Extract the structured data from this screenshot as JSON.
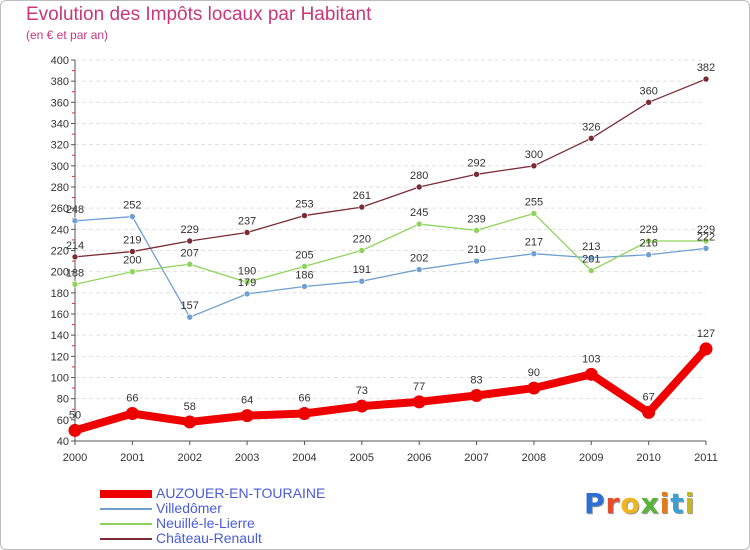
{
  "title": "Evolution des Impôts locaux par Habitant",
  "subtitle": "(en € et par an)",
  "logo": {
    "text": "Proxiti",
    "colors": [
      "#2a6fd1",
      "#e64b2a",
      "#f0b71d",
      "#58b43a",
      "#e07c1f",
      "#3aa0d8",
      "#c7b61c"
    ]
  },
  "chart_data": {
    "type": "line",
    "x": [
      2000,
      2001,
      2002,
      2003,
      2004,
      2005,
      2006,
      2007,
      2008,
      2009,
      2010,
      2011
    ],
    "xlim": [
      2000,
      2011
    ],
    "ylim": [
      40,
      400
    ],
    "yticks": [
      40,
      60,
      80,
      100,
      120,
      140,
      160,
      180,
      200,
      220,
      240,
      260,
      280,
      300,
      320,
      340,
      360,
      380,
      400
    ],
    "grid": "horizontal",
    "legend_position": "bottom-left",
    "series": [
      {
        "name": "AUZOUER-EN-TOURAINE",
        "color": "#ee0000",
        "values": [
          50,
          66,
          58,
          64,
          66,
          73,
          77,
          83,
          90,
          103,
          67,
          127
        ]
      },
      {
        "name": "Villedômer",
        "color": "#6f9fd0",
        "values": [
          248,
          252,
          157,
          179,
          186,
          191,
          202,
          210,
          217,
          213,
          216,
          222
        ]
      },
      {
        "name": "Neuillé-le-Lierre",
        "color": "#8fd45a",
        "values": [
          188,
          200,
          207,
          190,
          205,
          220,
          245,
          239,
          255,
          201,
          229,
          229
        ]
      },
      {
        "name": "Château-Renault",
        "color": "#7a2c34",
        "values": [
          214,
          219,
          229,
          237,
          253,
          261,
          280,
          292,
          300,
          326,
          360,
          382
        ]
      }
    ]
  }
}
